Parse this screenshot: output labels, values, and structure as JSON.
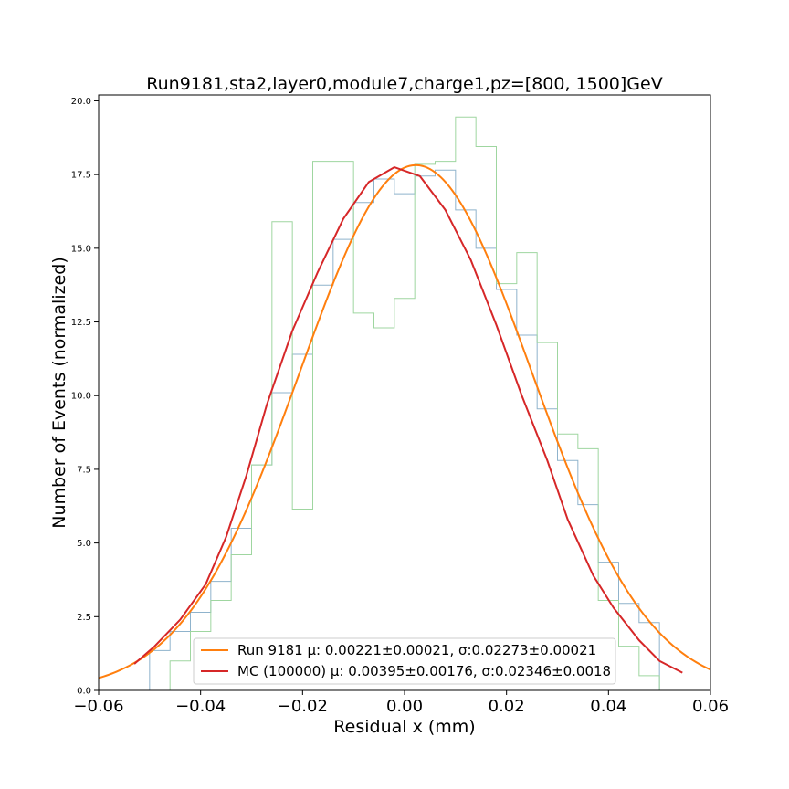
{
  "chart_data": {
    "type": "line",
    "title": "Run9181,sta2,layer0,module7,charge1,pz=[800, 1500]GeV",
    "xlabel": "Residual x (mm)",
    "ylabel": "Number of Events (normalized)",
    "xlim": [
      -0.06,
      0.06
    ],
    "ylim": [
      0,
      20.2
    ],
    "grid": false,
    "legend_position": "lower center",
    "x_ticks": [
      {
        "value": -0.06,
        "label": "−0.06"
      },
      {
        "value": -0.04,
        "label": "−0.04"
      },
      {
        "value": -0.02,
        "label": "−0.02"
      },
      {
        "value": 0.0,
        "label": "0.00"
      },
      {
        "value": 0.02,
        "label": "0.02"
      },
      {
        "value": 0.04,
        "label": "0.04"
      },
      {
        "value": 0.06,
        "label": "0.06"
      }
    ],
    "y_ticks": [
      {
        "value": 0.0,
        "label": "0.0"
      },
      {
        "value": 2.5,
        "label": "2.5"
      },
      {
        "value": 5.0,
        "label": "5.0"
      },
      {
        "value": 7.5,
        "label": "7.5"
      },
      {
        "value": 10.0,
        "label": "10.0"
      },
      {
        "value": 12.5,
        "label": "12.5"
      },
      {
        "value": 15.0,
        "label": "15.0"
      },
      {
        "value": 17.5,
        "label": "17.5"
      },
      {
        "value": 20.0,
        "label": "20.0"
      }
    ],
    "histograms": [
      {
        "color": "#8fb3cc",
        "edges": [
          -0.054,
          -0.05,
          -0.046,
          -0.042,
          -0.038,
          -0.034,
          -0.03,
          -0.026,
          -0.022,
          -0.018,
          -0.014,
          -0.01,
          -0.006,
          -0.002,
          0.002,
          0.006,
          0.01,
          0.014,
          0.018,
          0.022,
          0.026,
          0.03,
          0.034,
          0.038,
          0.042,
          0.046,
          0.05
        ],
        "values": [
          0.0,
          1.35,
          2.0,
          2.65,
          3.7,
          5.5,
          7.65,
          10.1,
          11.4,
          13.75,
          15.3,
          16.55,
          17.35,
          16.85,
          17.45,
          17.65,
          16.3,
          15.0,
          13.6,
          12.05,
          9.55,
          7.8,
          6.3,
          4.35,
          2.95,
          2.3
        ]
      },
      {
        "color": "#9fd6a0",
        "edges": [
          -0.054,
          -0.05,
          -0.046,
          -0.042,
          -0.038,
          -0.034,
          -0.03,
          -0.026,
          -0.022,
          -0.018,
          -0.014,
          -0.01,
          -0.006,
          -0.002,
          0.002,
          0.006,
          0.01,
          0.014,
          0.018,
          0.022,
          0.026,
          0.03,
          0.034,
          0.038,
          0.042,
          0.046,
          0.05
        ],
        "values": [
          0.0,
          0.0,
          1.0,
          2.0,
          3.05,
          4.6,
          7.65,
          15.9,
          6.15,
          17.95,
          17.95,
          12.8,
          12.3,
          13.3,
          17.85,
          17.95,
          19.45,
          18.45,
          13.8,
          14.85,
          11.8,
          8.7,
          8.2,
          3.05,
          1.5,
          0.5
        ]
      }
    ],
    "series": [
      {
        "name": "Run 9181 μ: 0.00221±0.00021, σ:0.02273±0.00021",
        "color": "#ff7f0e",
        "kind": "gaussian",
        "mu": 0.00221,
        "sigma": 0.02273,
        "amplitude": 17.82,
        "x_range": [
          -0.06,
          0.06
        ]
      },
      {
        "name": "MC (100000) μ: 0.00395±0.00176, σ:0.02346±0.0018",
        "color": "#d62728",
        "kind": "points",
        "x": [
          -0.053,
          -0.049,
          -0.044,
          -0.039,
          -0.035,
          -0.031,
          -0.027,
          -0.022,
          -0.017,
          -0.012,
          -0.007,
          -0.002,
          0.003,
          0.008,
          0.013,
          0.018,
          0.023,
          0.028,
          0.032,
          0.037,
          0.041,
          0.046,
          0.05,
          0.0545
        ],
        "y": [
          0.9,
          1.5,
          2.4,
          3.6,
          5.2,
          7.3,
          9.7,
          12.2,
          14.2,
          16.0,
          17.25,
          17.75,
          17.45,
          16.3,
          14.6,
          12.4,
          10.0,
          7.8,
          5.8,
          3.9,
          2.8,
          1.7,
          1.0,
          0.6
        ]
      }
    ]
  }
}
